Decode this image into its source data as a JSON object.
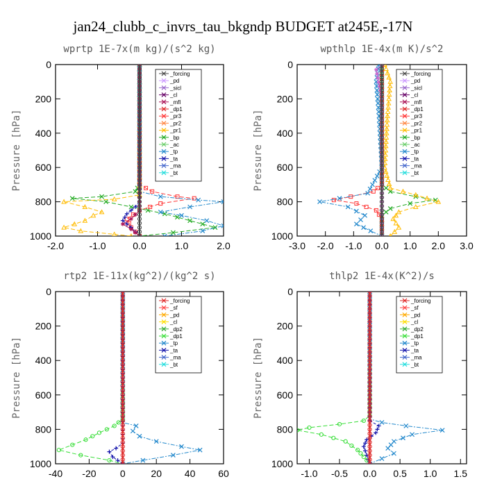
{
  "suptitle": "jan24_clubb_c_invrs_tau_bkgndp  BUDGET at245E,-17N",
  "chart_data": [
    {
      "type": "line",
      "title": "wprtp  1E-7x(m kg)/(s^2 kg)",
      "ylabel": "Pressure [hPa]",
      "xlim": [
        -2.0,
        2.0
      ],
      "xticks": [
        "-2.0",
        "-1.0",
        "0.0",
        "1.0",
        "2.0"
      ],
      "ylim": [
        1000,
        0
      ],
      "yticks": [
        "0",
        "200",
        "400",
        "600",
        "800",
        "1000"
      ],
      "legend": [
        "_forcing",
        "_pd",
        "_sicl",
        "_cl",
        "_mfl",
        "_dp1",
        "_pr3",
        "_pr2",
        "_pr1",
        "_bp",
        "_ac",
        "_tp",
        "_ta",
        "_ma",
        "_bt"
      ],
      "series": [
        {
          "name": "_bp",
          "color": "#22aa22",
          "marker": "x",
          "dash": "6,3",
          "points": [
            [
              0,
              0
            ],
            [
              0,
              700
            ],
            [
              -0.1,
              740
            ],
            [
              -0.9,
              770
            ],
            [
              -1.6,
              780
            ],
            [
              -0.8,
              800
            ],
            [
              -0.2,
              830
            ],
            [
              0.6,
              870
            ],
            [
              1.2,
              910
            ],
            [
              1.8,
              950
            ],
            [
              0.8,
              980
            ],
            [
              0,
              1000
            ]
          ]
        },
        {
          "name": "_pr1",
          "color": "#ffbb00",
          "marker": "tri",
          "dash": "6,3",
          "points": [
            [
              0,
              0
            ],
            [
              0,
              760
            ],
            [
              -0.6,
              785
            ],
            [
              -1.8,
              800
            ],
            [
              -1.3,
              830
            ],
            [
              -0.9,
              860
            ],
            [
              -1.1,
              880
            ],
            [
              -1.3,
              910
            ],
            [
              -1.8,
              950
            ],
            [
              -1.4,
              970
            ],
            [
              -0.6,
              990
            ],
            [
              -0.2,
              1000
            ]
          ]
        },
        {
          "name": "_pr3",
          "color": "#ff3333",
          "marker": "sq",
          "dash": "6,3",
          "points": [
            [
              0,
              0
            ],
            [
              0,
              700
            ],
            [
              0.3,
              740
            ],
            [
              0.9,
              770
            ],
            [
              1.3,
              780
            ],
            [
              0.5,
              810
            ],
            [
              0,
              850
            ],
            [
              -0.3,
              900
            ],
            [
              -0.2,
              950
            ],
            [
              0,
              1000
            ]
          ]
        },
        {
          "name": "_tp",
          "color": "#2288cc",
          "marker": "x",
          "dash": "6,2,2,2",
          "points": [
            [
              0,
              0
            ],
            [
              0,
              740
            ],
            [
              0.5,
              770
            ],
            [
              1.4,
              790
            ],
            [
              2.0,
              800
            ],
            [
              1.2,
              830
            ],
            [
              0.5,
              860
            ],
            [
              1.0,
              880
            ],
            [
              1.6,
              910
            ],
            [
              2.0,
              940
            ],
            [
              1.5,
              970
            ],
            [
              0.6,
              1000
            ]
          ]
        },
        {
          "name": "_ta",
          "color": "#1111aa",
          "marker": "plus",
          "dash": "4,2",
          "points": [
            [
              0,
              0
            ],
            [
              0,
              800
            ],
            [
              -0.1,
              830
            ],
            [
              -0.3,
              870
            ],
            [
              -0.4,
              910
            ],
            [
              -0.2,
              950
            ],
            [
              0,
              1000
            ]
          ]
        },
        {
          "name": "_mfl",
          "color": "#aa1155",
          "marker": "star",
          "dash": "",
          "points": [
            [
              0,
              0
            ],
            [
              0,
              850
            ],
            [
              -0.2,
              900
            ],
            [
              -0.4,
              930
            ],
            [
              -0.2,
              960
            ],
            [
              0,
              1000
            ]
          ]
        },
        {
          "name": "_forcing",
          "color": "#444444",
          "marker": "circle",
          "dash": "",
          "points": [
            [
              0,
              0
            ],
            [
              0,
              200
            ],
            [
              0,
              400
            ],
            [
              0,
              600
            ],
            [
              0,
              800
            ],
            [
              0,
              1000
            ]
          ]
        }
      ]
    },
    {
      "type": "line",
      "title": "wpthlp  1E-4x(m K)/s^2",
      "ylabel": "Pressure [hPa]",
      "xlim": [
        -3.0,
        3.0
      ],
      "xticks": [
        "-3.0",
        "-2.0",
        "-1.0",
        "0.0",
        "1.0",
        "2.0",
        "3.0"
      ],
      "ylim": [
        1000,
        0
      ],
      "yticks": [
        "0",
        "200",
        "400",
        "600",
        "800",
        "1000"
      ],
      "legend": [
        "_forcing",
        "_pd",
        "_sicl",
        "_cl",
        "_mfl",
        "_dp1",
        "_pr3",
        "_pr2",
        "_pr1",
        "_bp",
        "_ac",
        "_tp",
        "_ta",
        "_ma",
        "_bt"
      ],
      "series": [
        {
          "name": "_bp",
          "color": "#22aa22",
          "marker": "x",
          "dash": "6,3",
          "points": [
            [
              0,
              0
            ],
            [
              0,
              700
            ],
            [
              0.3,
              740
            ],
            [
              1.2,
              770
            ],
            [
              1.9,
              790
            ],
            [
              1.0,
              810
            ],
            [
              0.3,
              840
            ],
            [
              0,
              880
            ],
            [
              0,
              1000
            ]
          ]
        },
        {
          "name": "_pr1",
          "color": "#ffbb00",
          "marker": "tri",
          "dash": "6,3",
          "points": [
            [
              0.1,
              0
            ],
            [
              0.3,
              100
            ],
            [
              0.2,
              300
            ],
            [
              0.1,
              600
            ],
            [
              0.3,
              720
            ],
            [
              1.2,
              760
            ],
            [
              2.0,
              800
            ],
            [
              1.2,
              830
            ],
            [
              0.6,
              860
            ],
            [
              0.4,
              900
            ],
            [
              0.6,
              950
            ],
            [
              0.3,
              1000
            ]
          ]
        },
        {
          "name": "_pr3",
          "color": "#ff3333",
          "marker": "sq",
          "dash": "6,3",
          "points": [
            [
              0,
              0
            ],
            [
              0,
              700
            ],
            [
              -0.3,
              740
            ],
            [
              -1.1,
              770
            ],
            [
              -1.7,
              790
            ],
            [
              -0.9,
              810
            ],
            [
              -0.2,
              850
            ],
            [
              0,
              900
            ],
            [
              0,
              1000
            ]
          ]
        },
        {
          "name": "_tp",
          "color": "#2288cc",
          "marker": "x",
          "dash": "6,2,2,2",
          "points": [
            [
              -0.1,
              0
            ],
            [
              -0.2,
              100
            ],
            [
              -0.1,
              300
            ],
            [
              0,
              600
            ],
            [
              -0.5,
              750
            ],
            [
              -1.5,
              780
            ],
            [
              -2.2,
              800
            ],
            [
              -1.2,
              830
            ],
            [
              -0.6,
              880
            ],
            [
              -0.9,
              930
            ],
            [
              -0.4,
              970
            ],
            [
              0,
              1000
            ]
          ]
        },
        {
          "name": "_sicl",
          "color": "#cc66cc",
          "marker": "star",
          "dash": "",
          "points": [
            [
              0,
              0
            ],
            [
              -0.2,
              30
            ],
            [
              0,
              200
            ],
            [
              0,
              1000
            ]
          ]
        },
        {
          "name": "_forcing",
          "color": "#444444",
          "marker": "circle",
          "dash": "",
          "points": [
            [
              0,
              0
            ],
            [
              0,
              200
            ],
            [
              0,
              400
            ],
            [
              0,
              600
            ],
            [
              0,
              800
            ],
            [
              0,
              1000
            ]
          ]
        }
      ]
    },
    {
      "type": "line",
      "title": "rtp2  1E-11x(kg^2)/(kg^2 s)",
      "ylabel": "Pressure [hPa]",
      "xlim": [
        -40,
        60
      ],
      "xticks": [
        "-40",
        "-20",
        "0",
        "20",
        "40",
        "60"
      ],
      "ylim": [
        1000,
        0
      ],
      "yticks": [
        "0",
        "200",
        "400",
        "600",
        "800",
        "1000"
      ],
      "legend": [
        "_forcing",
        "_sf",
        "_pd",
        "_cl",
        "_dp2",
        "_dp1",
        "_tp",
        "_ta",
        "_ma",
        "_bt"
      ],
      "series": [
        {
          "name": "_dp1",
          "color": "#33dd33",
          "marker": "circle",
          "dash": "6,3",
          "points": [
            [
              0,
              0
            ],
            [
              0,
              740
            ],
            [
              -5,
              780
            ],
            [
              -14,
              820
            ],
            [
              -22,
              860
            ],
            [
              -30,
              890
            ],
            [
              -38,
              920
            ],
            [
              -25,
              950
            ],
            [
              -8,
              980
            ],
            [
              0,
              1000
            ]
          ]
        },
        {
          "name": "_tp",
          "color": "#2288cc",
          "marker": "x",
          "dash": "6,2,2,2",
          "points": [
            [
              0,
              0
            ],
            [
              0,
              760
            ],
            [
              8,
              780
            ],
            [
              6,
              810
            ],
            [
              10,
              840
            ],
            [
              20,
              870
            ],
            [
              35,
              900
            ],
            [
              46,
              920
            ],
            [
              30,
              950
            ],
            [
              12,
              980
            ],
            [
              0,
              1000
            ]
          ]
        },
        {
          "name": "_ta",
          "color": "#1111aa",
          "marker": "plus",
          "dash": "4,2",
          "points": [
            [
              0,
              0
            ],
            [
              0,
              880
            ],
            [
              -4,
              910
            ],
            [
              -8,
              930
            ],
            [
              -6,
              960
            ],
            [
              0,
              1000
            ]
          ]
        },
        {
          "name": "_forcing",
          "color": "#dd2222",
          "marker": "circle",
          "dash": "",
          "points": [
            [
              0,
              0
            ],
            [
              0,
              200
            ],
            [
              0,
              400
            ],
            [
              0,
              600
            ],
            [
              0,
              800
            ],
            [
              0,
              1000
            ]
          ]
        }
      ]
    },
    {
      "type": "line",
      "title": "thlp2  1E-4x(K^2)/s",
      "ylabel": "Pressure [hPa]",
      "xlim": [
        -1.2,
        1.6
      ],
      "xticks": [
        "-1.0",
        "-0.5",
        "0.0",
        "0.5",
        "1.0",
        "1.5"
      ],
      "xtickvals": [
        -1.0,
        -0.5,
        0.0,
        0.5,
        1.0,
        1.5
      ],
      "ylim": [
        1000,
        0
      ],
      "yticks": [
        "0",
        "200",
        "400",
        "600",
        "800",
        "1000"
      ],
      "legend": [
        "_forcing",
        "_sf",
        "_pd",
        "_cl",
        "_dp2",
        "_dp1",
        "_tp",
        "_ta",
        "_ma",
        "_bt"
      ],
      "series": [
        {
          "name": "_dp1",
          "color": "#33dd33",
          "marker": "circle",
          "dash": "6,3",
          "points": [
            [
              0,
              0
            ],
            [
              0,
              720
            ],
            [
              -0.1,
              750
            ],
            [
              -0.5,
              770
            ],
            [
              -1.0,
              790
            ],
            [
              -1.2,
              805
            ],
            [
              -0.8,
              830
            ],
            [
              -0.4,
              870
            ],
            [
              -0.2,
              920
            ],
            [
              -0.1,
              960
            ],
            [
              0,
              1000
            ]
          ]
        },
        {
          "name": "_tp",
          "color": "#2288cc",
          "marker": "x",
          "dash": "6,2,2,2",
          "points": [
            [
              0,
              0
            ],
            [
              0,
              740
            ],
            [
              0.2,
              760
            ],
            [
              0.6,
              780
            ],
            [
              1.2,
              805
            ],
            [
              0.7,
              830
            ],
            [
              0.4,
              870
            ],
            [
              0.3,
              910
            ],
            [
              0.4,
              940
            ],
            [
              0.2,
              970
            ],
            [
              0,
              1000
            ]
          ]
        },
        {
          "name": "_ta",
          "color": "#1111aa",
          "marker": "plus",
          "dash": "4,2",
          "points": [
            [
              0,
              0
            ],
            [
              0,
              750
            ],
            [
              0.15,
              780
            ],
            [
              0.1,
              820
            ],
            [
              -0.05,
              860
            ],
            [
              -0.1,
              900
            ],
            [
              0,
              1000
            ]
          ]
        },
        {
          "name": "_forcing",
          "color": "#dd2222",
          "marker": "circle",
          "dash": "",
          "points": [
            [
              0,
              0
            ],
            [
              0,
              200
            ],
            [
              0,
              400
            ],
            [
              0,
              600
            ],
            [
              0,
              800
            ],
            [
              0,
              1000
            ]
          ]
        }
      ]
    }
  ]
}
